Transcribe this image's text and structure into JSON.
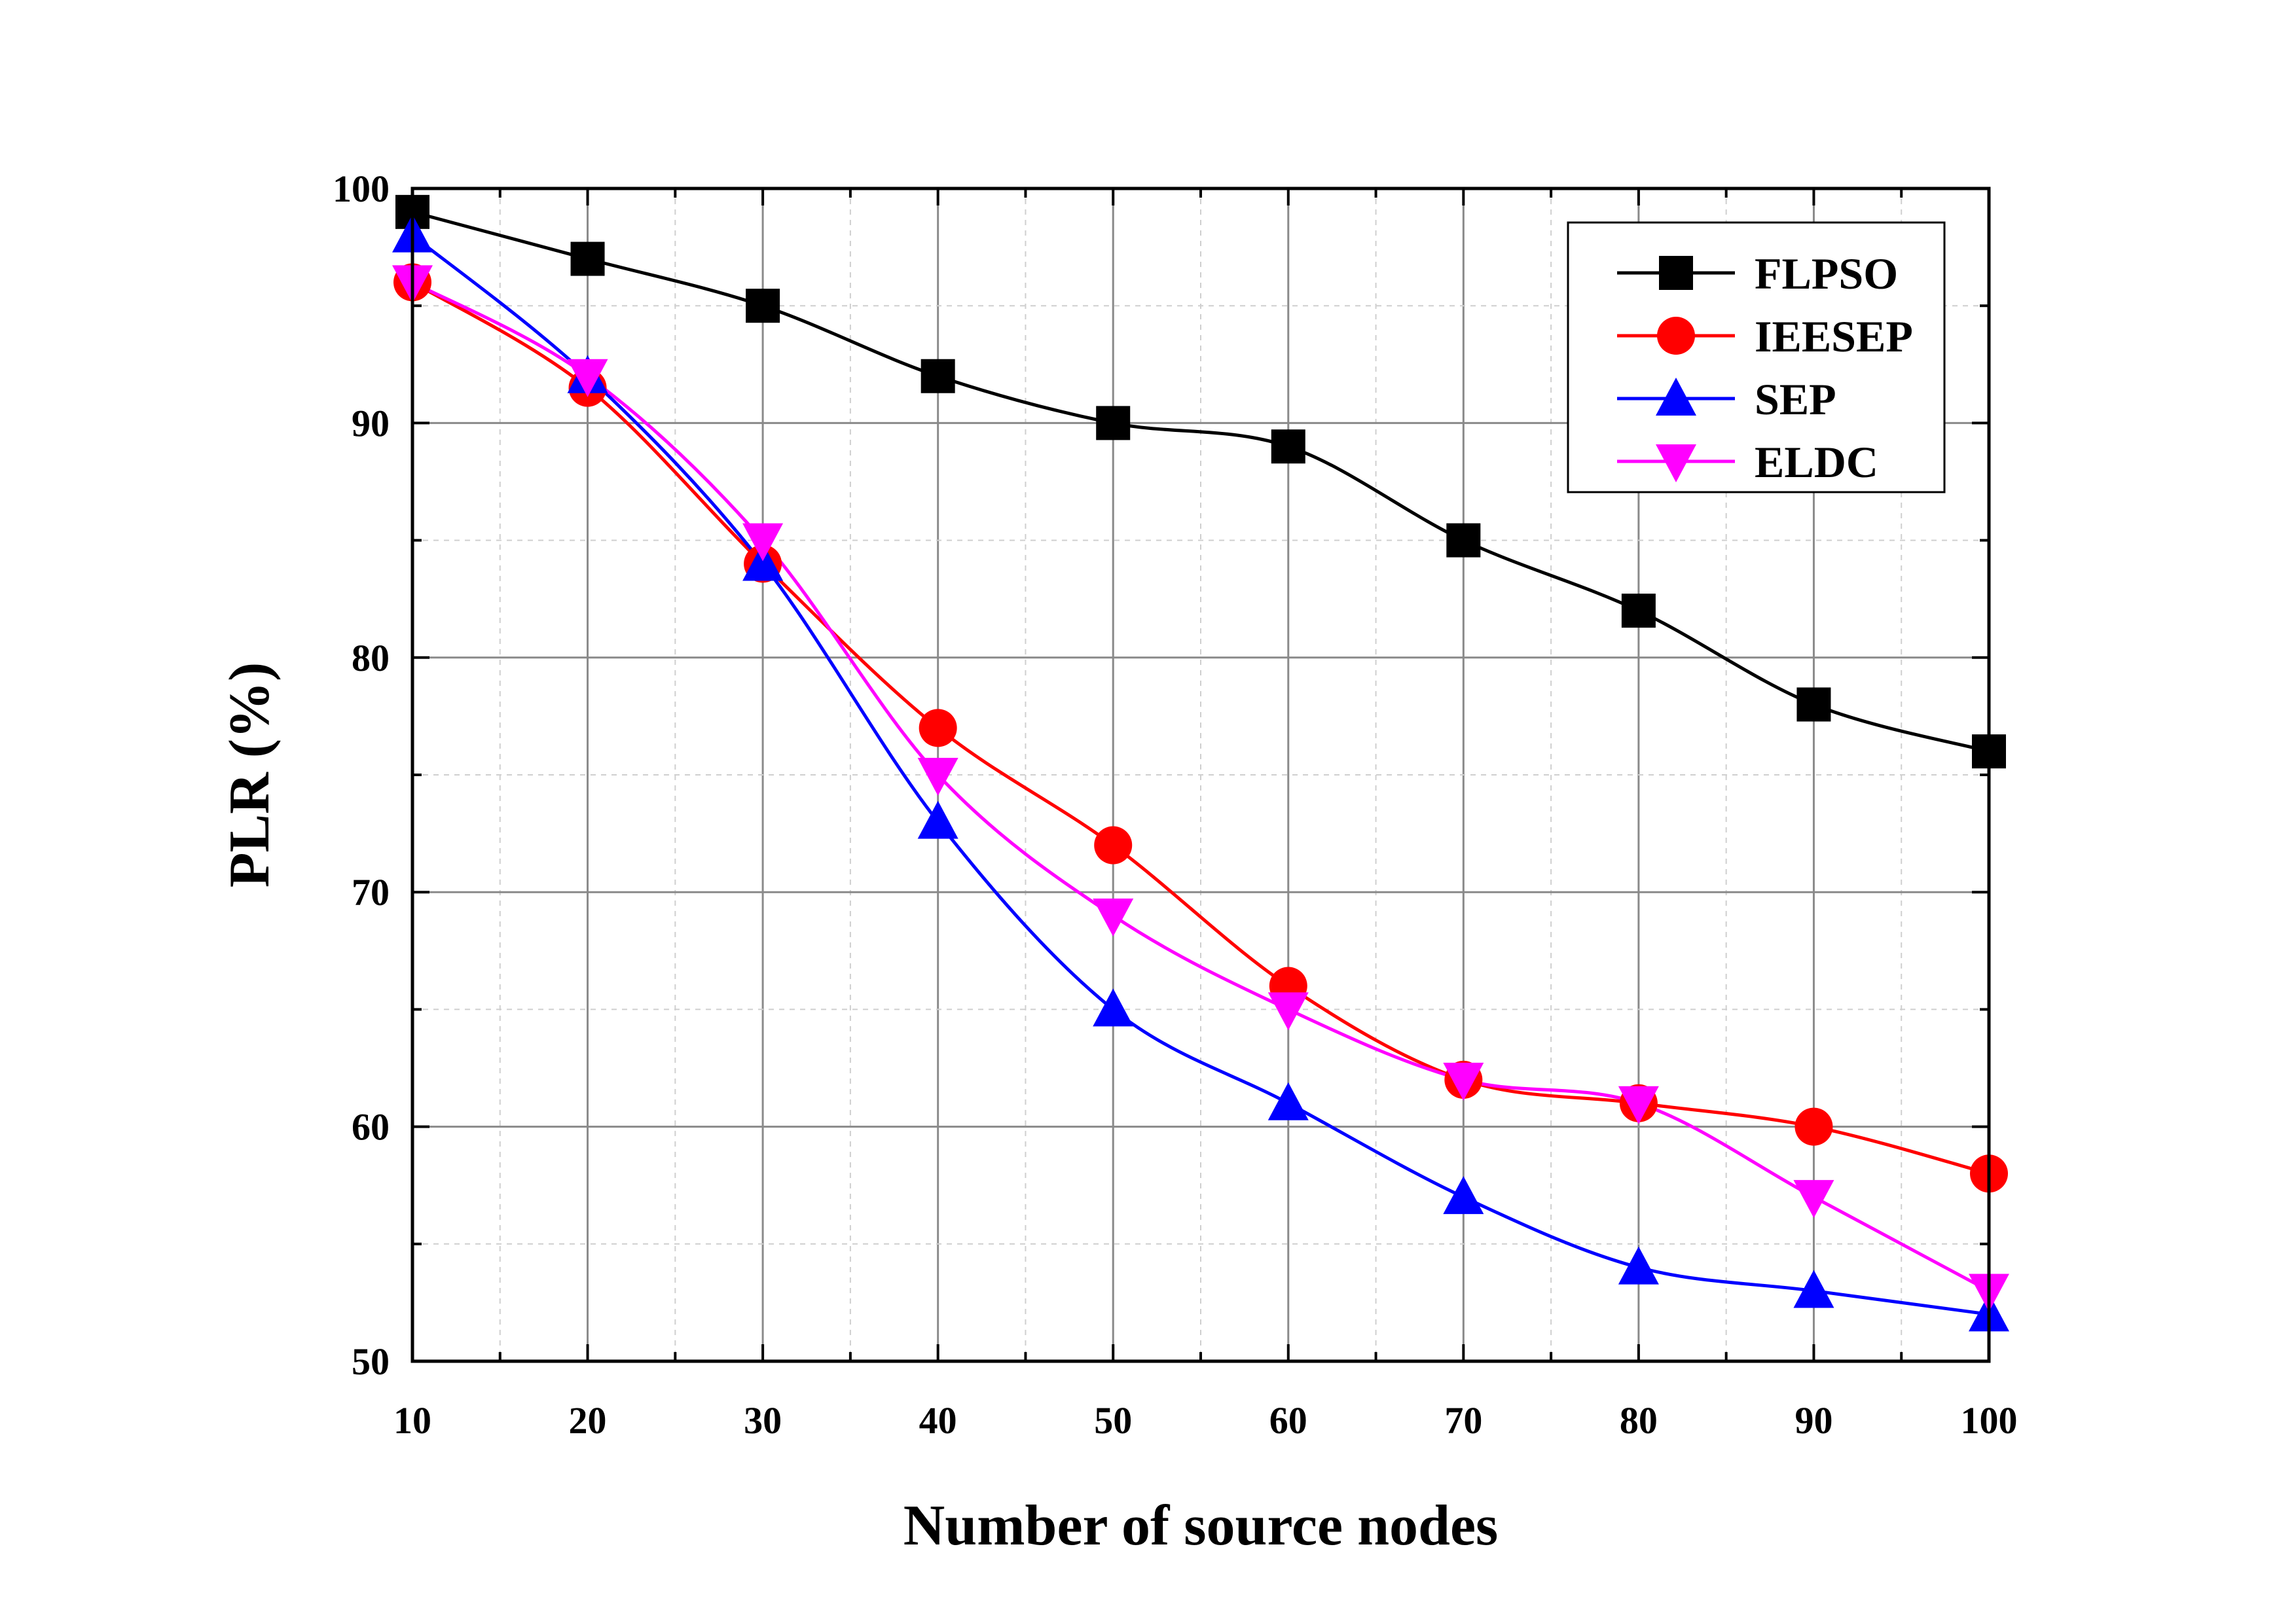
{
  "chart_data": {
    "type": "line",
    "title": "",
    "xlabel": "Number of source nodes",
    "ylabel": "PLR (%)",
    "xlim": [
      10,
      100
    ],
    "ylim": [
      50,
      100
    ],
    "x": [
      10,
      20,
      30,
      40,
      50,
      60,
      70,
      80,
      90,
      100
    ],
    "x_ticks": [
      "10",
      "20",
      "30",
      "40",
      "50",
      "60",
      "70",
      "80",
      "90",
      "100"
    ],
    "y_ticks": [
      "50",
      "60",
      "70",
      "80",
      "90",
      "100"
    ],
    "grid": true,
    "legend_position": "top-right",
    "series": [
      {
        "name": "FLPSO",
        "color": "#000000",
        "marker": "square",
        "values": [
          99,
          97,
          95,
          92,
          90,
          89,
          85,
          82,
          78,
          76
        ]
      },
      {
        "name": "IEESEP",
        "color": "#ff0000",
        "marker": "circle",
        "values": [
          96,
          91.5,
          84,
          77,
          72,
          66,
          62,
          61,
          60,
          58
        ]
      },
      {
        "name": "SEP",
        "color": "#0000ff",
        "marker": "triangle-up",
        "values": [
          98,
          92,
          84,
          73,
          65,
          61,
          57,
          54,
          53,
          52
        ]
      },
      {
        "name": "ELDC",
        "color": "#ff00ff",
        "marker": "triangle-down",
        "values": [
          96,
          92,
          85,
          75,
          69,
          65,
          62,
          61,
          57,
          53
        ]
      }
    ]
  }
}
